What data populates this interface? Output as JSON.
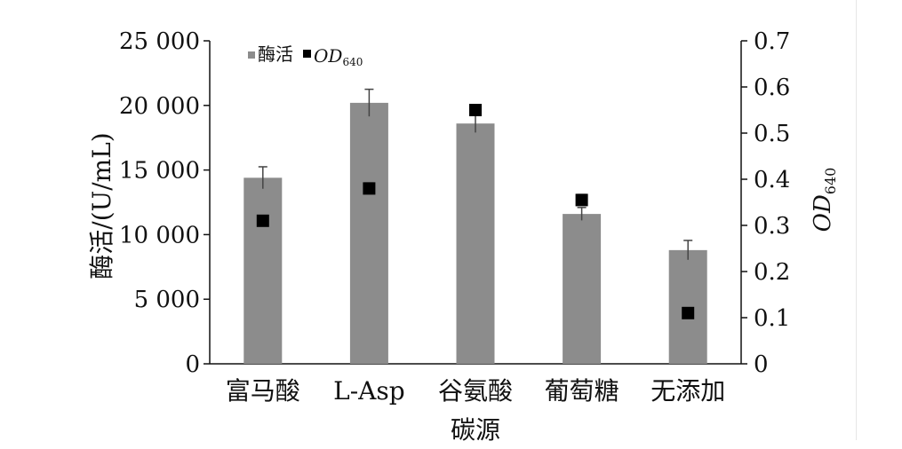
{
  "chart_data": {
    "type": "bar",
    "categories": [
      "富马酸",
      "L-Asp",
      "谷氨酸",
      "葡萄糖",
      "无添加"
    ],
    "xlabel": "碳源",
    "ylabel": "酶活/(U/mL)",
    "y2label_main": "OD",
    "y2label_sub": "640",
    "ylim": [
      0,
      25000
    ],
    "y2lim": [
      0,
      0.7
    ],
    "yticks": [
      "0",
      "5 000",
      "10 000",
      "15 000",
      "20 000",
      "25 000"
    ],
    "y2ticks": [
      "0",
      "0.1",
      "0.2",
      "0.3",
      "0.4",
      "0.5",
      "0.6",
      "0.7"
    ],
    "legend": {
      "position": "top-left",
      "bar_label": "酶活",
      "marker_label_main": "OD",
      "marker_label_sub": "640"
    },
    "series": [
      {
        "name": "酶活",
        "kind": "bar",
        "axis": "left",
        "values": [
          14400,
          20200,
          18600,
          11600,
          8800
        ],
        "errors": [
          850,
          1050,
          700,
          500,
          750
        ],
        "color": "#8c8c8c"
      },
      {
        "name": "OD640",
        "kind": "marker",
        "axis": "right",
        "values": [
          0.31,
          0.38,
          0.55,
          0.355,
          0.11
        ],
        "errors": [
          0.01,
          0.012,
          0.012,
          0.012,
          0.005
        ],
        "color": "#000000"
      }
    ],
    "grid": false
  }
}
